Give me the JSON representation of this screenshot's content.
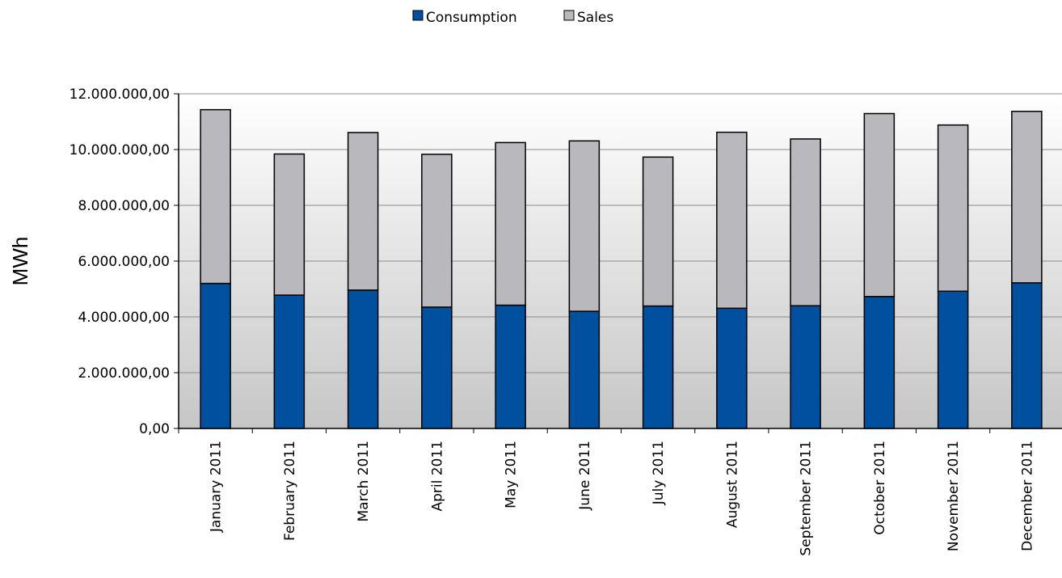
{
  "chart_data": {
    "type": "bar",
    "stacked": true,
    "title": "",
    "xlabel": "",
    "ylabel": "MWh",
    "ylim": [
      0,
      12000000
    ],
    "yticks": [
      "0,00",
      "2.000.000,00",
      "4.000.000,00",
      "6.000.000,00",
      "8.000.000,00",
      "10.000.000,00",
      "12.000.000,00"
    ],
    "grid": true,
    "legend_position": "top",
    "categories": [
      "January 2011",
      "February 2011",
      "March 2011",
      "April 2011",
      "May 2011",
      "June 2011",
      "July 2011",
      "August 2011",
      "September 2011",
      "October 2011",
      "November 2011",
      "December 2011"
    ],
    "series": [
      {
        "name": "Consumption",
        "color": "#0050a0",
        "values": [
          5200000,
          4780000,
          4960000,
          4350000,
          4420000,
          4200000,
          4390000,
          4310000,
          4400000,
          4730000,
          4920000,
          5220000
        ]
      },
      {
        "name": "Sales",
        "color": "#b8b8bd",
        "values": [
          6230000,
          5060000,
          5650000,
          5480000,
          5830000,
          6110000,
          5340000,
          6310000,
          5980000,
          6560000,
          5960000,
          6150000
        ]
      }
    ]
  }
}
